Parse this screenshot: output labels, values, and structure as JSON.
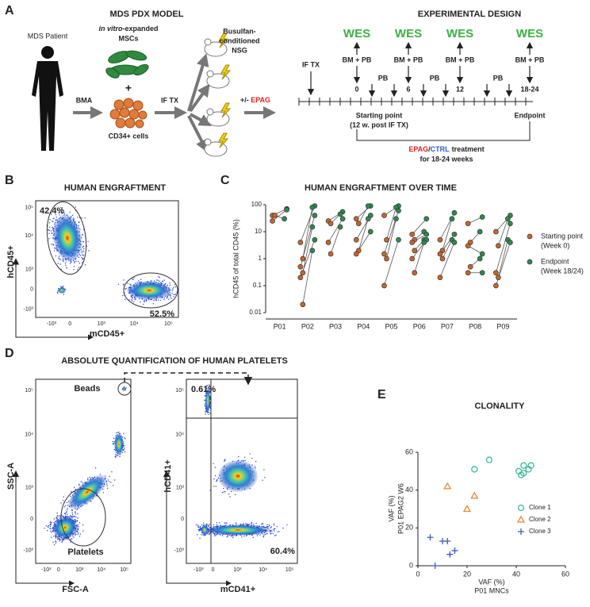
{
  "panel_labels": [
    "A",
    "B",
    "C",
    "D",
    "E"
  ],
  "pdx_model": {
    "title": "MDS PDX MODEL",
    "patient": "MDS Patient",
    "msc_italic": "in vitro",
    "msc_rest": "-expanded",
    "msc_name": "MSCs",
    "plus": "+",
    "cd34": "CD34+ cells",
    "bma": "BMA",
    "iftx": "IF TX",
    "mice1": "Busulfan-",
    "mice2": "conditioned",
    "mice3": "NSG",
    "treat_prefix": "+/- ",
    "treat": "EPAG"
  },
  "design": {
    "title": "EXPERIMENTAL DESIGN",
    "wes": [
      "WES",
      "WES",
      "WES",
      "WES"
    ],
    "bmpb": [
      "BM + PB",
      "BM + PB",
      "BM + PB",
      "BM + PB"
    ],
    "iftx": "IF TX",
    "weeks": [
      "0",
      "6",
      "12",
      "18-24"
    ],
    "pb": [
      "PB",
      "PB",
      "PB"
    ],
    "start": "Starting point",
    "start_note": "(12 w. post IF TX)",
    "end": "Endpoint",
    "treat_epag": "EPAG",
    "treat_slash": "/",
    "treat_ctrl": "CTRL",
    "treat_rest": "treatment",
    "treat_dur": "for 18-24 weeks"
  },
  "engraftment": {
    "title": "HUMAN ENGRAFTMENT",
    "gate_human": "42.4%",
    "gate_mouse": "52.5%",
    "ylabel": "hCD45+",
    "xlabel": "mCD45+"
  },
  "platelets": {
    "title": "ABSOLUTE QUANTIFICATION OF HUMAN PLATELETS",
    "beads": "Beads",
    "platelets": "Platelets",
    "left_y": "SSC-A",
    "left_x": "FSC-A",
    "q_ul": "0.61%",
    "q_lr": "60.4%",
    "right_y": "hCD41+",
    "right_x": "mCD41+"
  },
  "flow_ticks": {
    "y": [
      "10⁵",
      "10⁴",
      "10³",
      "0",
      "-10³"
    ],
    "x": [
      "-10³",
      "0",
      "10³",
      "10⁴",
      "10⁵"
    ]
  },
  "chart_data": [
    {
      "type": "paired-dot",
      "title": "HUMAN ENGRAFTMENT OVER TIME",
      "ylabel": "hCD45 of total CD45 (%)",
      "log_y": true,
      "categories": [
        "P01",
        "P02",
        "P03",
        "P04",
        "P05",
        "P06",
        "P07",
        "P08",
        "P09"
      ],
      "ylim": [
        0.01,
        100
      ],
      "yticks": [
        0.01,
        0.1,
        1,
        10,
        100
      ],
      "legend": "right",
      "series": [
        {
          "name": "Starting point",
          "note": "(Week 0)",
          "color": "#c8652b",
          "values": [
            [
              40,
              40,
              25
            ],
            [
              4,
              1,
              0.5,
              0.3,
              0.2,
              0.02
            ],
            [
              25,
              20,
              4,
              1.5
            ],
            [
              30,
              20,
              5,
              2,
              1.5
            ],
            [
              40,
              5,
              1.5,
              1,
              0.1
            ],
            [
              8,
              5,
              4,
              2,
              1,
              0.3
            ],
            [
              5,
              2,
              1.5,
              1,
              0.2
            ],
            [
              20,
              4,
              3,
              0.5,
              0.3
            ],
            [
              10,
              3,
              0.3,
              0.2,
              0.1
            ]
          ]
        },
        {
          "name": "Endpoint",
          "note": "(Week 18/24)",
          "color": "#2f8a4e",
          "values": [
            [
              70,
              30,
              65
            ],
            [
              90,
              80,
              40,
              15,
              5,
              2
            ],
            [
              55,
              45,
              30,
              15
            ],
            [
              90,
              90,
              40,
              30,
              10
            ],
            [
              90,
              80,
              60,
              30,
              5
            ],
            [
              30,
              10,
              8,
              5,
              5,
              4
            ],
            [
              50,
              30,
              8,
              5,
              4
            ],
            [
              35,
              10,
              1.5,
              1,
              0.3
            ],
            [
              40,
              30,
              20,
              5,
              4
            ]
          ]
        }
      ]
    },
    {
      "type": "scatter",
      "title": "CLONALITY",
      "xlabel": "VAF (%)",
      "xlabel2": "P01 MNCs",
      "ylabel": "VAF (%)",
      "ylabel2": "P01 EPAG2 W6",
      "xlim": [
        0,
        60
      ],
      "ylim": [
        0,
        60
      ],
      "xticks": [
        0,
        20,
        40,
        60
      ],
      "yticks": [
        0,
        20,
        40,
        60
      ],
      "legend": "lower right",
      "series": [
        {
          "name": "Clone 1",
          "color": "#3cb99a",
          "marker": "circle",
          "x": [
            23,
            29,
            41,
            42,
            43,
            43,
            45,
            46
          ],
          "values": [
            51,
            56,
            50,
            48,
            49,
            53,
            51,
            53
          ]
        },
        {
          "name": "Clone 2",
          "color": "#e8893a",
          "marker": "triangle",
          "x": [
            12,
            20,
            23
          ],
          "values": [
            42,
            30,
            37
          ]
        },
        {
          "name": "Clone 3",
          "color": "#3a5cb8",
          "marker": "plus",
          "x": [
            5,
            7,
            10,
            12,
            13,
            15
          ],
          "values": [
            15,
            0,
            13,
            13,
            6,
            8
          ]
        }
      ]
    }
  ]
}
